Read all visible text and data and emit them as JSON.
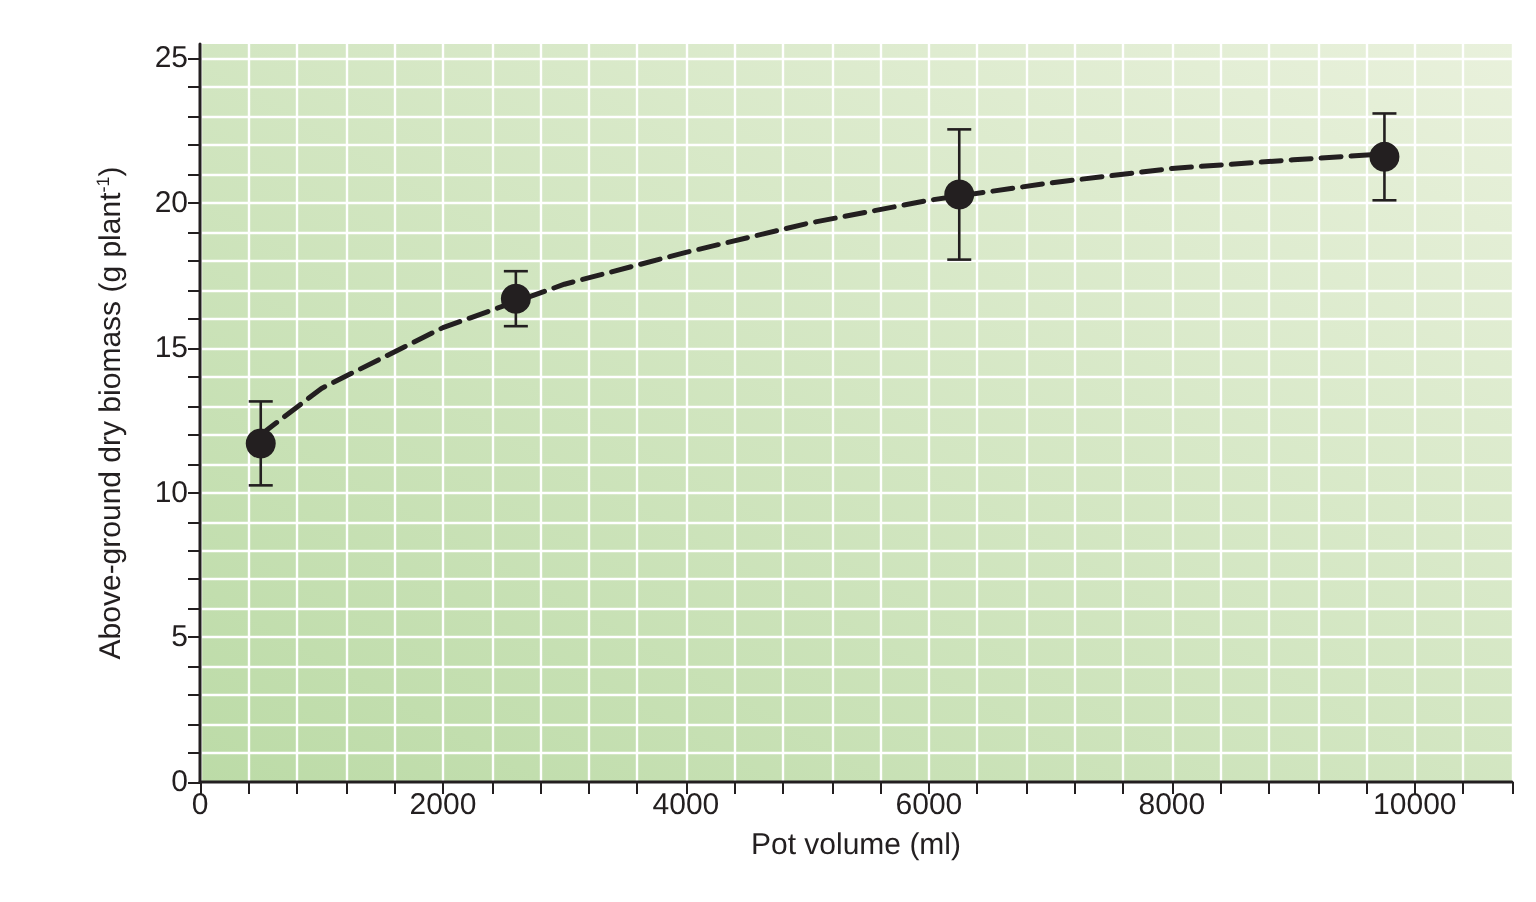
{
  "chart_data": {
    "type": "scatter",
    "xlabel": "Pot volume (ml)",
    "ylabel": "Above-ground dry biomass (g plant$^{-1}$)",
    "xlim": [
      0,
      10800
    ],
    "ylim": [
      0,
      25.5
    ],
    "xticks": [
      0,
      {
        "value": 400,
        "label": null
      },
      {
        "value": 800,
        "label": null
      },
      {
        "value": 1200,
        "label": null
      },
      {
        "value": 1600,
        "label": null
      },
      2000,
      {
        "value": 2400,
        "label": null
      },
      {
        "value": 2800,
        "label": null
      },
      {
        "value": 3200,
        "label": null
      },
      {
        "value": 3600,
        "label": null
      },
      4000,
      {
        "value": 4400,
        "label": null
      },
      {
        "value": 4800,
        "label": null
      },
      {
        "value": 5200,
        "label": null
      },
      {
        "value": 5600,
        "label": null
      },
      6000,
      {
        "value": 6400,
        "label": null
      },
      {
        "value": 6800,
        "label": null
      },
      {
        "value": 7200,
        "label": null
      },
      {
        "value": 7600,
        "label": null
      },
      8000,
      {
        "value": 8400,
        "label": null
      },
      {
        "value": 8800,
        "label": null
      },
      {
        "value": 9200,
        "label": null
      },
      {
        "value": 9600,
        "label": null
      },
      10000,
      {
        "value": 10400,
        "label": null
      },
      {
        "value": 10800,
        "label": null
      }
    ],
    "yticks": [
      0,
      {
        "value": 1,
        "label": null
      },
      {
        "value": 2,
        "label": null
      },
      {
        "value": 3,
        "label": null
      },
      {
        "value": 4,
        "label": null
      },
      5,
      {
        "value": 6,
        "label": null
      },
      {
        "value": 7,
        "label": null
      },
      {
        "value": 8,
        "label": null
      },
      {
        "value": 9,
        "label": null
      },
      10,
      {
        "value": 11,
        "label": null
      },
      {
        "value": 12,
        "label": null
      },
      {
        "value": 13,
        "label": null
      },
      {
        "value": 14,
        "label": null
      },
      15,
      {
        "value": 16,
        "label": null
      },
      {
        "value": 17,
        "label": null
      },
      {
        "value": 18,
        "label": null
      },
      {
        "value": 19,
        "label": null
      },
      20,
      {
        "value": 21,
        "label": null
      },
      {
        "value": 22,
        "label": null
      },
      {
        "value": 23,
        "label": null
      },
      {
        "value": 24,
        "label": null
      },
      25
    ],
    "grid": true,
    "series": [
      {
        "color": "#231f20",
        "marker": "circle",
        "x": [
          500,
          2600,
          6250,
          9750
        ],
        "values": [
          11.7,
          16.7,
          20.3,
          21.6
        ],
        "errors": [
          1.45,
          0.95,
          2.25,
          1.5
        ]
      },
      {
        "type": "line",
        "color": "#231f20",
        "line_style": "dashed",
        "marker": "none",
        "x": [
          500,
          1000,
          2000,
          3000,
          4000,
          5000,
          6000,
          7000,
          8000,
          9000,
          9750
        ],
        "values": [
          12.0,
          13.6,
          15.7,
          17.2,
          18.3,
          19.3,
          20.1,
          20.7,
          21.2,
          21.5,
          21.7
        ]
      }
    ]
  }
}
